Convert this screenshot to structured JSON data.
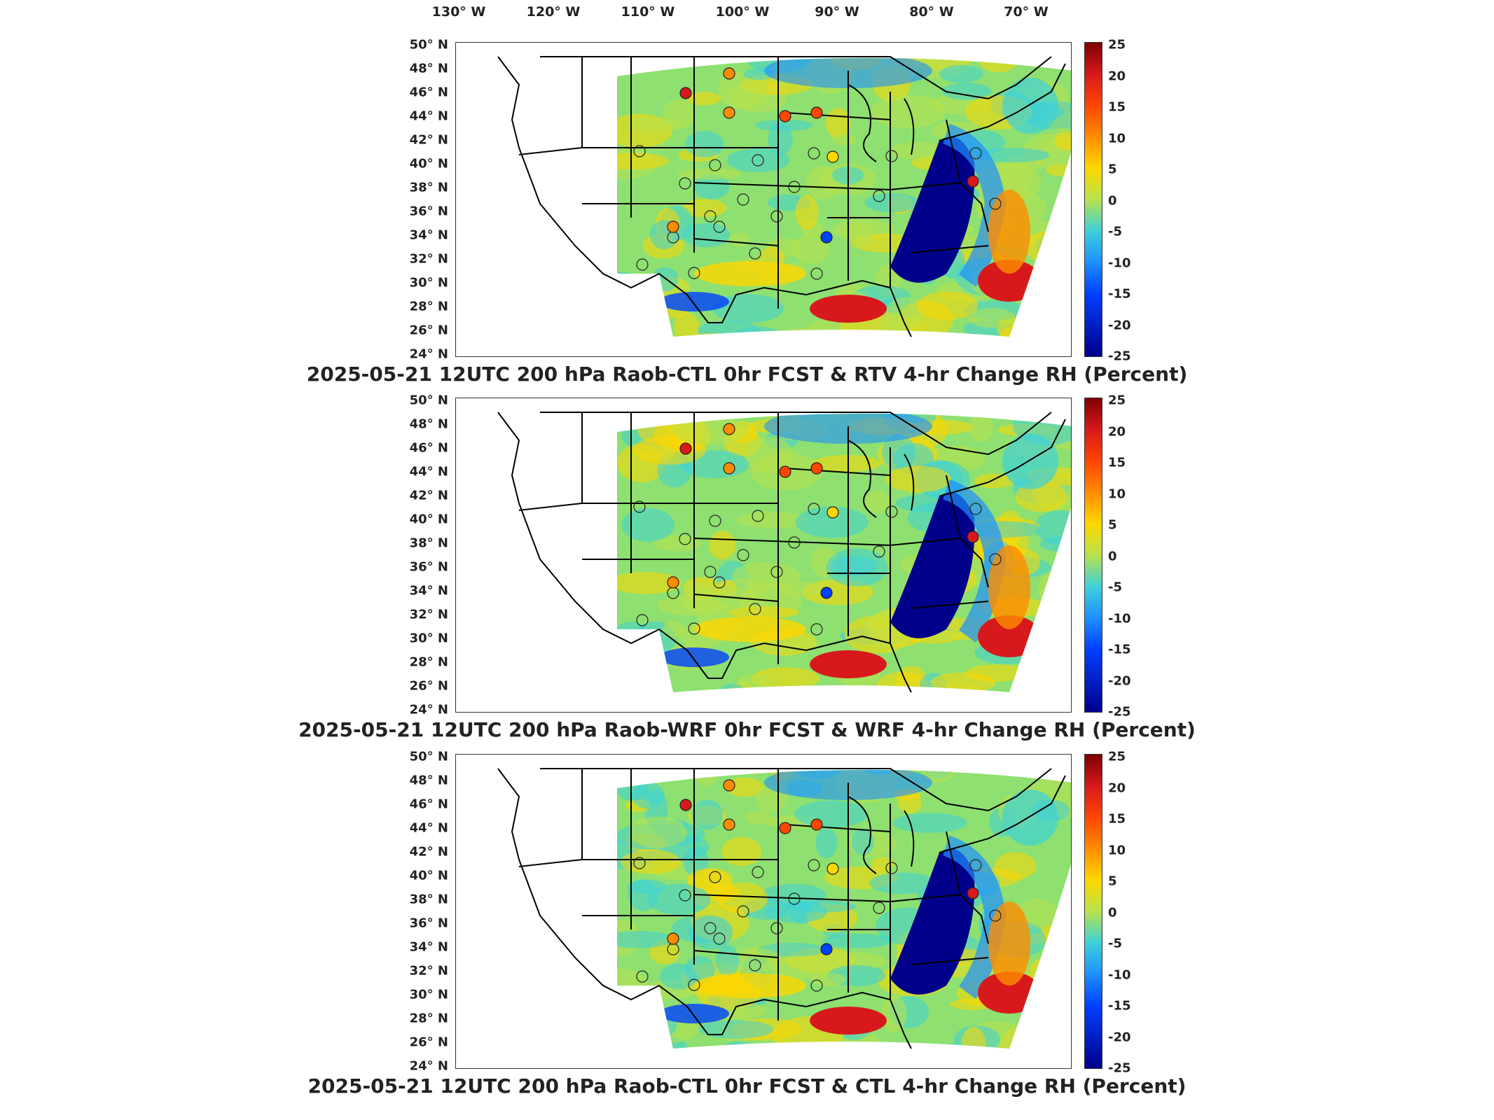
{
  "longitude_labels": [
    "130° W",
    "120° W",
    "110° W",
    "100° W",
    "90° W",
    "80° W",
    "70° W"
  ],
  "latitude_labels": [
    "50° N",
    "48° N",
    "46° N",
    "44° N",
    "42° N",
    "40° N",
    "38° N",
    "36° N",
    "34° N",
    "32° N",
    "30° N",
    "28° N",
    "26° N",
    "24° N"
  ],
  "colorbar_ticks": [
    "25",
    "20",
    "15",
    "10",
    "5",
    "0",
    "-5",
    "-10",
    "-15",
    "-20",
    "-25"
  ],
  "colormap": [
    "#7f0000",
    "#d7191c",
    "#ff4500",
    "#ff8c00",
    "#ffd700",
    "#b8e24d",
    "#3ed1d9",
    "#1e90ff",
    "#0040ff",
    "#00008b"
  ],
  "panels": [
    {
      "title": "2025-05-21 12UTC 200 hPa Raob-CTL 0hr FCST & RTV 4-hr Change RH (Percent)"
    },
    {
      "title": "2025-05-21 12UTC 200 hPa Raob-WRF 0hr FCST & WRF 4-hr Change RH (Percent)"
    },
    {
      "title": "2025-05-21 12UTC 200 hPa Raob-CTL 0hr FCST & CTL 4-hr Change RH (Percent)"
    }
  ]
}
